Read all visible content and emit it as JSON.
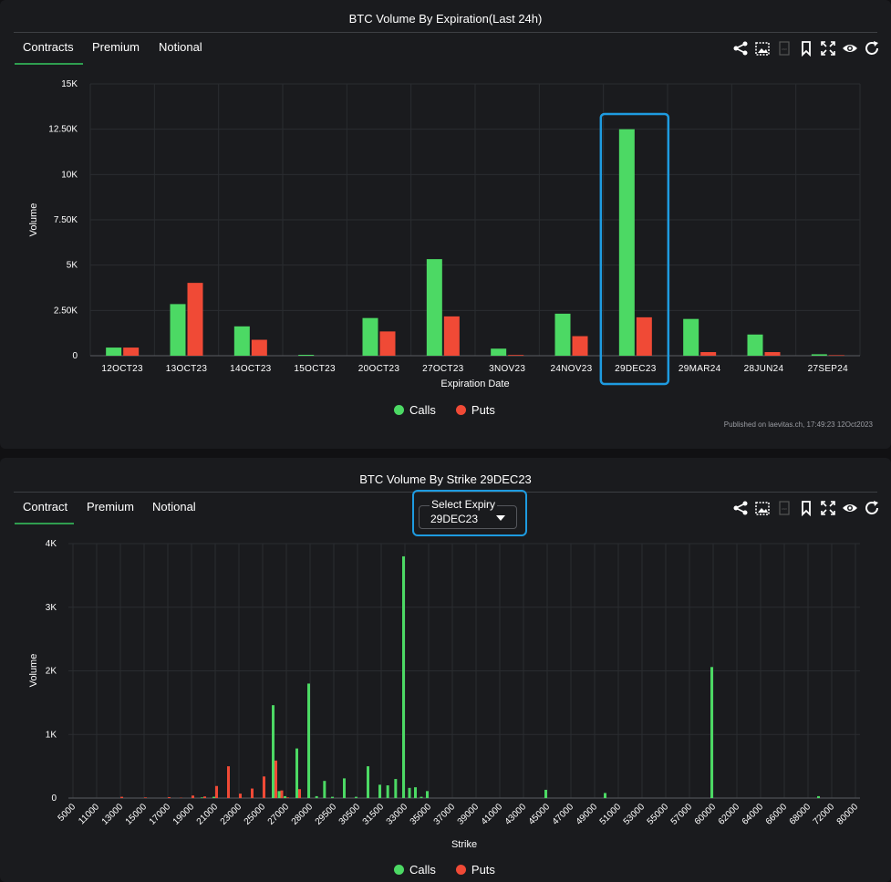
{
  "top": {
    "title": "BTC Volume By Expiration(Last 24h)",
    "tabs": [
      "Contracts",
      "Premium",
      "Notional"
    ],
    "active_tab": "Contracts",
    "published": "Published on laevitas.ch, 17:49:23 12Oct2023"
  },
  "bottom": {
    "title": "BTC Volume By Strike 29DEC23",
    "tabs": [
      "Contract",
      "Premium",
      "Notional"
    ],
    "active_tab": "Contract",
    "expiry": {
      "label": "Select Expiry",
      "value": "29DEC23"
    }
  },
  "toolbar_icons": [
    "share-icon",
    "image-export-icon",
    "csv-export-icon",
    "bookmark-icon",
    "fullscreen-icon",
    "eye-icon",
    "refresh-icon"
  ],
  "legend": [
    "Calls",
    "Puts"
  ],
  "colors": {
    "calls": "#4cd964",
    "puts": "#f04a36",
    "highlight": "#1e9be0"
  },
  "chart_data": [
    {
      "type": "bar",
      "title": "BTC Volume By Expiration(Last 24h)",
      "xlabel": "Expiration Date",
      "ylabel": "Volume",
      "categories": [
        "12OCT23",
        "13OCT23",
        "14OCT23",
        "15OCT23",
        "20OCT23",
        "27OCT23",
        "3NOV23",
        "24NOV23",
        "29DEC23",
        "29MAR24",
        "28JUN24",
        "27SEP24"
      ],
      "series": [
        {
          "name": "Calls",
          "values": [
            450,
            2850,
            1620,
            50,
            2080,
            5330,
            390,
            2320,
            12500,
            2030,
            1170,
            80
          ]
        },
        {
          "name": "Puts",
          "values": [
            450,
            4020,
            880,
            0,
            1340,
            2170,
            40,
            1080,
            2120,
            200,
            200,
            30
          ]
        }
      ],
      "yticks": [
        0,
        2500,
        5000,
        7500,
        10000,
        12500,
        15000
      ],
      "ytick_labels": [
        "0",
        "2.50K",
        "5K",
        "7.50K",
        "10K",
        "12.50K",
        "15K"
      ],
      "ylim": [
        0,
        15000
      ],
      "highlighted_category": "29DEC23",
      "legend_position": "bottom-center"
    },
    {
      "type": "bar",
      "title": "BTC Volume By Strike 29DEC23",
      "xlabel": "Strike",
      "ylabel": "Volume",
      "tick_labels": [
        "5000",
        "11000",
        "13000",
        "15000",
        "17000",
        "19000",
        "21000",
        "23000",
        "25000",
        "27000",
        "28000",
        "29500",
        "30500",
        "31500",
        "33000",
        "35000",
        "37000",
        "39000",
        "41000",
        "43000",
        "45000",
        "47000",
        "49000",
        "51000",
        "53000",
        "55000",
        "57000",
        "60000",
        "62000",
        "64000",
        "66000",
        "68000",
        "72000",
        "80000"
      ],
      "strikes": [
        13000,
        15000,
        17000,
        18000,
        19000,
        20000,
        21000,
        22000,
        23000,
        24000,
        25000,
        26000,
        26500,
        27000,
        27500,
        28000,
        28500,
        29000,
        29500,
        30000,
        30500,
        31000,
        31500,
        32000,
        32500,
        33000,
        33500,
        34000,
        34500,
        35000,
        35500,
        36000,
        36500,
        37000,
        38000,
        39000,
        40000,
        41000,
        45000,
        50000,
        60000,
        70000
      ],
      "series": [
        {
          "name": "Calls",
          "values": [
            0,
            0,
            0,
            0,
            0,
            10,
            20,
            0,
            0,
            0,
            0,
            1460,
            110,
            30,
            780,
            1800,
            30,
            270,
            20,
            310,
            20,
            500,
            210,
            200,
            300,
            3800,
            160,
            170,
            20,
            110,
            0,
            0,
            0,
            0,
            0,
            0,
            0,
            0,
            130,
            80,
            2060,
            30
          ]
        },
        {
          "name": "Puts",
          "values": [
            20,
            10,
            15,
            5,
            40,
            25,
            190,
            500,
            70,
            150,
            340,
            590,
            120,
            10,
            140,
            0,
            0,
            0,
            0,
            0,
            0,
            0,
            0,
            0,
            0,
            0,
            0,
            0,
            0,
            0,
            0,
            0,
            0,
            0,
            0,
            0,
            0,
            0,
            0,
            0,
            0,
            0
          ]
        }
      ],
      "yticks": [
        0,
        1000,
        2000,
        3000,
        4000
      ],
      "ytick_labels": [
        "0",
        "1K",
        "2K",
        "3K",
        "4K"
      ],
      "ylim": [
        0,
        4000
      ],
      "legend_position": "bottom-center"
    }
  ]
}
